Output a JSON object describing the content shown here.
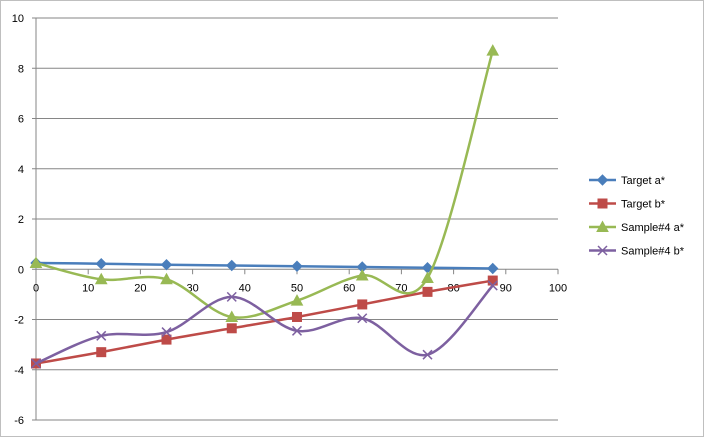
{
  "chart_data": {
    "type": "scatter",
    "title": "",
    "xlabel": "",
    "ylabel": "",
    "xlim": [
      0,
      100
    ],
    "ylim": [
      -6,
      10
    ],
    "x_ticks": [
      "0",
      "10",
      "20",
      "30",
      "40",
      "50",
      "60",
      "70",
      "80",
      "90",
      "100"
    ],
    "y_ticks": [
      "10",
      "8",
      "6",
      "4",
      "2",
      "0",
      "-2",
      "-4",
      "-6"
    ],
    "grid": "horizontal",
    "legend_position": "right",
    "series": [
      {
        "name": "Target a*",
        "color": "#4A7EBB",
        "marker": "diamond",
        "smooth": true,
        "x": [
          0,
          12.5,
          25,
          37.5,
          50,
          62.5,
          75,
          87.5
        ],
        "y": [
          0.25,
          0.22,
          0.18,
          0.15,
          0.12,
          0.09,
          0.06,
          0.03
        ]
      },
      {
        "name": "Target b*",
        "color": "#BE4B48",
        "marker": "square",
        "smooth": true,
        "x": [
          0,
          12.5,
          25,
          37.5,
          50,
          62.5,
          75,
          87.5
        ],
        "y": [
          -3.75,
          -3.3,
          -2.8,
          -2.35,
          -1.9,
          -1.4,
          -0.9,
          -0.45
        ]
      },
      {
        "name": "Sample#4 a*",
        "color": "#98B954",
        "marker": "triangle",
        "smooth": true,
        "x": [
          0,
          12.5,
          25,
          37.5,
          50,
          62.5,
          75,
          87.5
        ],
        "y": [
          0.25,
          -0.4,
          -0.4,
          -1.9,
          -1.25,
          -0.25,
          -0.35,
          8.7
        ]
      },
      {
        "name": "Sample#4 b*",
        "color": "#7D60A0",
        "marker": "x",
        "smooth": true,
        "x": [
          0,
          12.5,
          25,
          37.5,
          50,
          62.5,
          75,
          87.5
        ],
        "y": [
          -3.75,
          -2.65,
          -2.5,
          -1.1,
          -2.45,
          -1.95,
          -3.4,
          -0.65
        ]
      }
    ]
  }
}
